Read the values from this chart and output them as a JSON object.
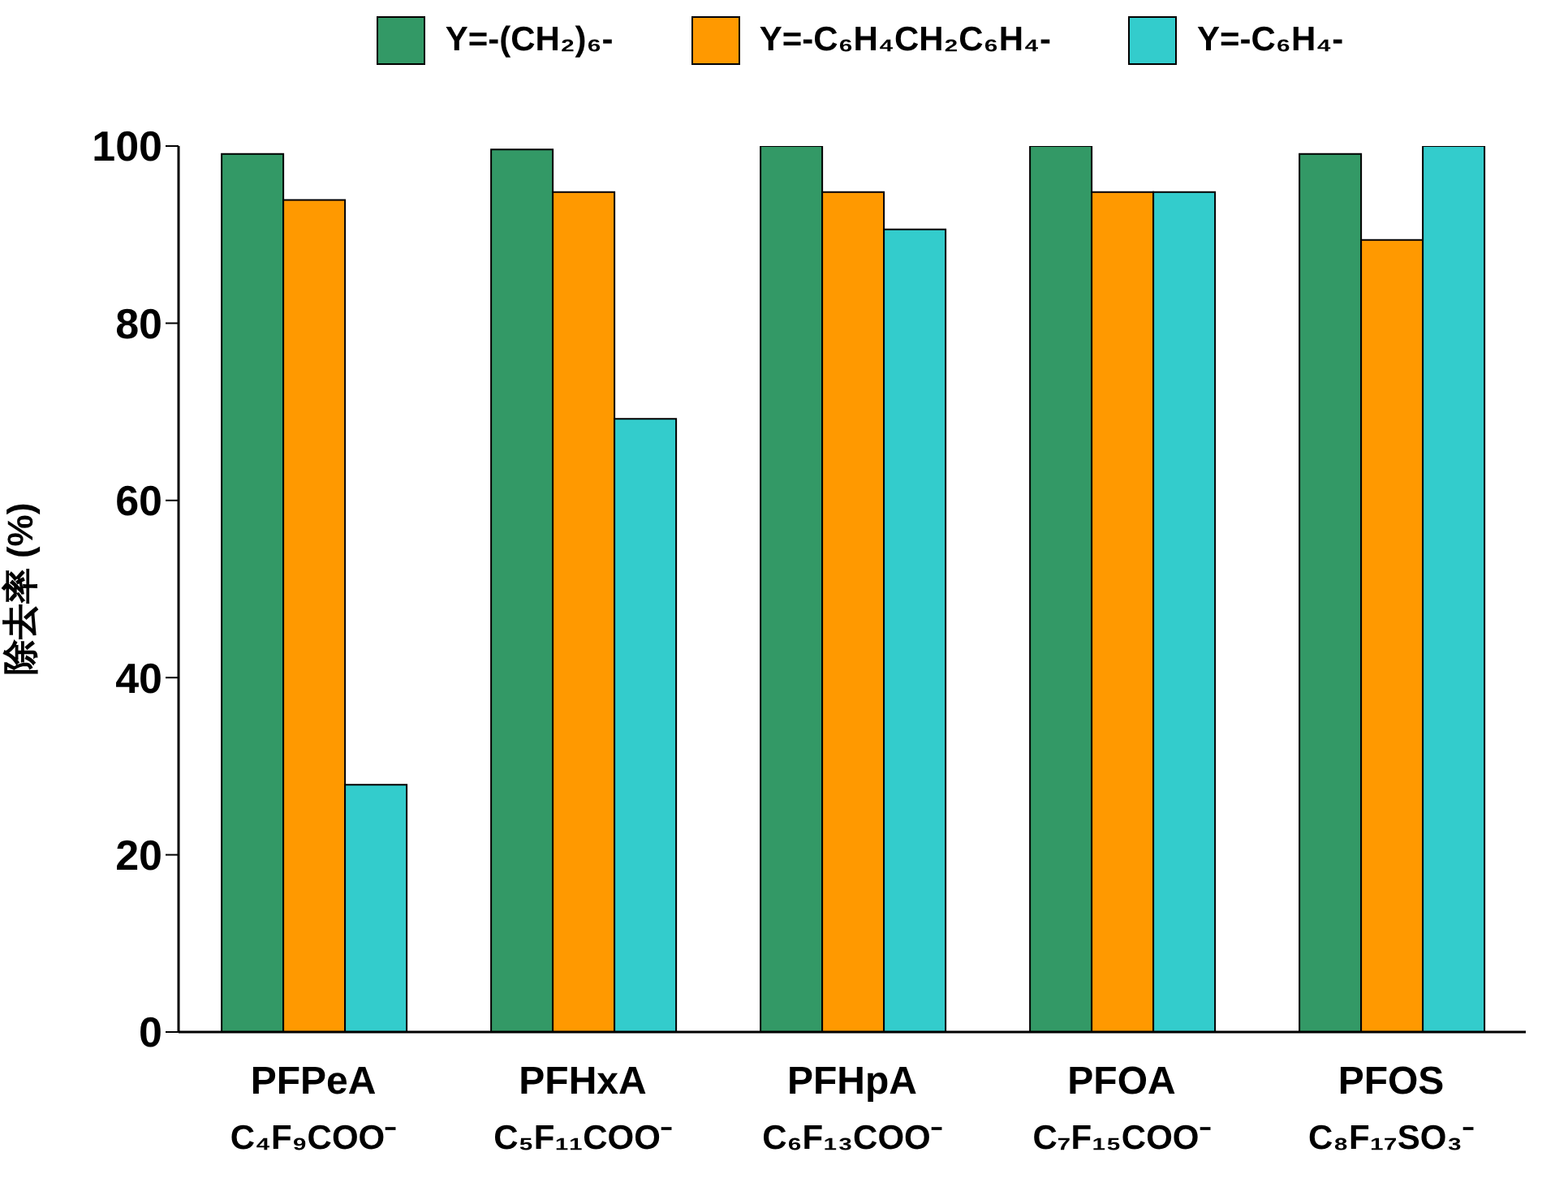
{
  "chart_data": {
    "type": "bar",
    "ylabel": "除去率 (%)",
    "categories": [
      "PFPeA\nC₄F₉COO⁻",
      "PFHxA\nC₅F₁₁COO⁻",
      "PFHpA\nC₆F₁₃COO⁻",
      "PFOA\nC₇F₁₅COO⁻",
      "PFOS\nC₈F₁₇SO₃⁻"
    ],
    "series": [
      {
        "name": "Y=-(CH₂)₆-",
        "color": "#339966",
        "values": [
          99.1,
          99.6,
          100,
          100,
          99.1
        ]
      },
      {
        "name": "Y=-C₆H₄CH₂C₆H₄-",
        "color": "#ff9900",
        "values": [
          93.9,
          94.8,
          94.8,
          94.8,
          89.4
        ]
      },
      {
        "name": "Y=-C₆H₄-",
        "color": "#33cccc",
        "values": [
          27.9,
          69.2,
          90.6,
          94.8,
          100
        ]
      }
    ],
    "ylim": [
      0,
      100
    ],
    "yticks": [
      0,
      20,
      40,
      60,
      80,
      100
    ],
    "grid": false,
    "legend": "top"
  }
}
